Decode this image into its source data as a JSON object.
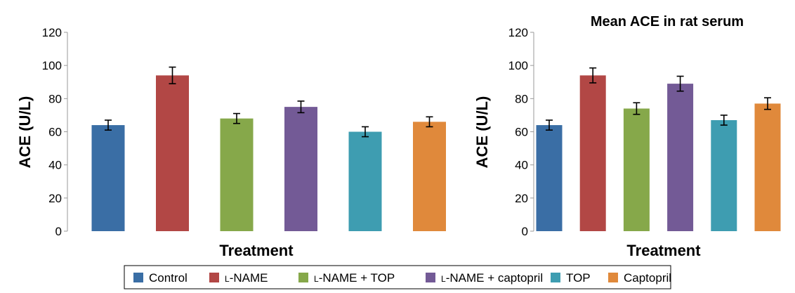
{
  "chart_data": [
    {
      "type": "bar",
      "title": "",
      "xlabel": "Treatment",
      "ylabel": "ACE (U/L)",
      "ylim": [
        0,
        120
      ],
      "yticks": [
        0,
        20,
        40,
        60,
        80,
        100,
        120
      ],
      "categories": [
        "Control",
        "L-NAME",
        "L-NAME + TOP",
        "L-NAME + captopril",
        "TOP",
        "Captopril"
      ],
      "values": [
        64,
        94,
        68,
        75,
        60,
        66
      ],
      "errors": [
        3,
        5,
        3,
        3.5,
        3,
        3
      ]
    },
    {
      "type": "bar",
      "title": "Mean ACE in rat serum",
      "xlabel": "Treatment",
      "ylabel": "ACE (U/L)",
      "ylim": [
        0,
        120
      ],
      "yticks": [
        0,
        20,
        40,
        60,
        80,
        100,
        120
      ],
      "categories": [
        "Control",
        "L-NAME",
        "L-NAME + TOP",
        "L-NAME + captopril",
        "TOP",
        "Captopril"
      ],
      "values": [
        64,
        94,
        74,
        89,
        67,
        77
      ],
      "errors": [
        3,
        4.5,
        3.5,
        4.5,
        3,
        3.5
      ]
    }
  ],
  "legend": {
    "entries": [
      {
        "label": "Control",
        "smallcaps": "",
        "rest": "Control",
        "color": "#3a6ea5"
      },
      {
        "label": "L-NAME",
        "smallcaps": "L",
        "rest": "-NAME",
        "color": "#b24745"
      },
      {
        "label": "L-NAME + TOP",
        "smallcaps": "L",
        "rest": "-NAME + TOP",
        "color": "#86a84a"
      },
      {
        "label": "L-NAME + captopril",
        "smallcaps": "L",
        "rest": "-NAME + captopril",
        "color": "#735a96"
      },
      {
        "label": "TOP",
        "smallcaps": "",
        "rest": "TOP",
        "color": "#3e9db1"
      },
      {
        "label": "Captopril",
        "smallcaps": "",
        "rest": "Captopril",
        "color": "#e0893b"
      }
    ]
  },
  "colors": {
    "axis": "#9a9a9a",
    "error_bar": "#000000",
    "legend_border": "#000000"
  }
}
